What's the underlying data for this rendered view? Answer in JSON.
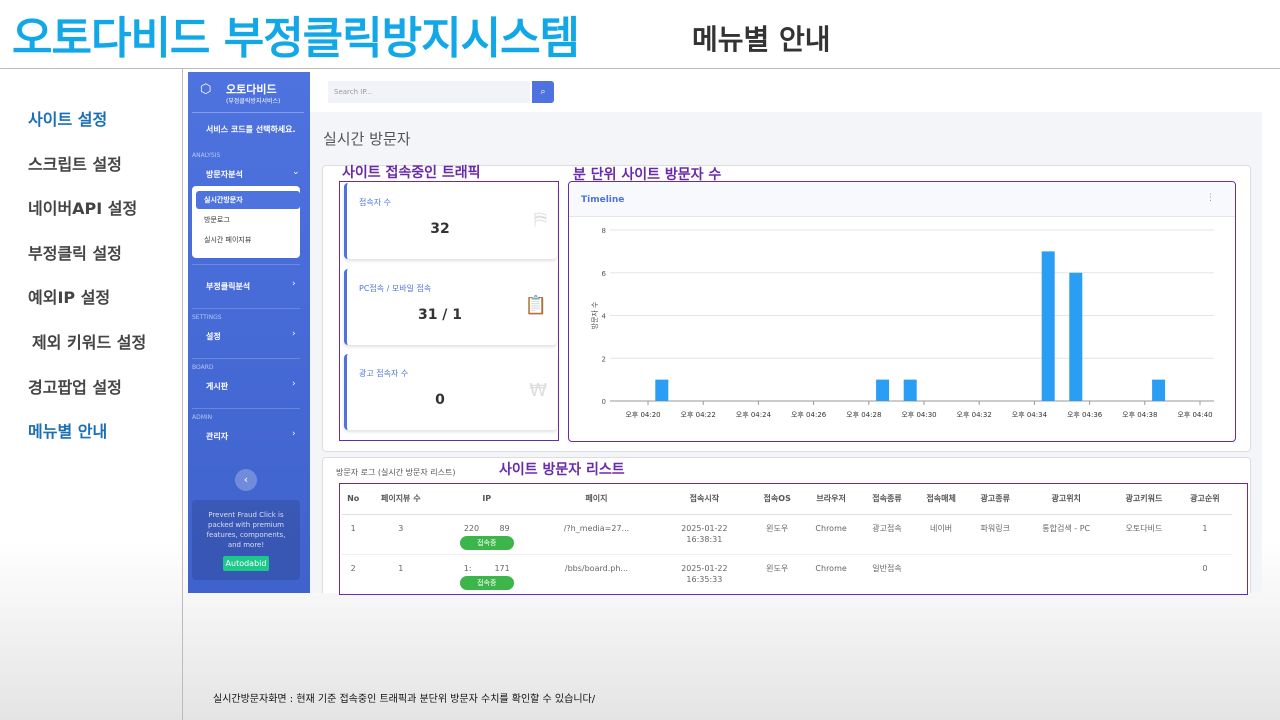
{
  "header": {
    "title": "오토다비드 부정클릭방지시스템",
    "subtitle": "메뉴별 안내"
  },
  "menu": [
    {
      "label": "사이트 설정",
      "active": true
    },
    {
      "label": "스크립트 설정",
      "active": false
    },
    {
      "label": "네이버API 설정",
      "active": false
    },
    {
      "label": "부정클릭 설정",
      "active": false
    },
    {
      "label": "예외IP 설정",
      "active": false
    },
    {
      "label": "제외 키워드 설정",
      "active": false
    },
    {
      "label": "경고팝업 설정",
      "active": false
    },
    {
      "label": "메뉴별 안내",
      "active": true
    }
  ],
  "sidebar": {
    "brand": "오토다비드",
    "brand_sub": "(부정클릭방지서비스)",
    "notice": "서비스 코드를 선택하세요.",
    "sections": [
      {
        "heading": "ANALYSIS",
        "item": "방문자분석",
        "sub": [
          "실시간방문자",
          "방문로그",
          "실시간 페이지뷰"
        ]
      },
      {
        "heading": null,
        "item": "부정클릭분석",
        "sub": null
      },
      {
        "heading": "SETTINGS",
        "item": "설정",
        "sub": null
      },
      {
        "heading": "BOARD",
        "item": "게시판",
        "sub": null
      },
      {
        "heading": "ADMIN",
        "item": "관리자",
        "sub": null
      }
    ],
    "promo": "Prevent Fraud Click is packed with premium features, components, and more!",
    "promo_button": "Autodabid"
  },
  "topbar": {
    "search_placeholder": "Search IP..."
  },
  "page_title": "실시간 방문자",
  "annotations": [
    "사이트 접속중인 트래픽",
    "분 단위 사이트 방문자 수",
    "사이트 방문자 리스트"
  ],
  "stats": [
    {
      "label": "접속자 수",
      "value": 32
    },
    {
      "label": "PC접속 / 모바일 접속",
      "value": "31 / 1"
    },
    {
      "label": "광고 접속자 수",
      "value": 0
    }
  ],
  "chart_data": {
    "type": "bar",
    "title": "Timeline",
    "y_label": "방문자 수",
    "color": "#2a9df4",
    "grid": true,
    "categories": [
      "오후 04:20",
      null,
      "오후 04:22",
      null,
      "오후 04:24",
      null,
      "오후 04:26",
      null,
      "오후 04:28",
      null,
      "오후 04:30",
      null,
      "오후 04:32",
      null,
      "오후 04:34",
      null,
      "오후 04:36",
      null,
      "오후 04:38",
      null,
      "오후 04:40"
    ],
    "values": [
      1,
      0,
      0,
      0,
      0,
      0,
      0,
      0,
      1,
      1,
      0,
      0,
      0,
      0,
      7,
      6,
      0,
      0,
      1,
      0,
      0
    ],
    "ylim": [
      0,
      8
    ],
    "yticks": [
      0,
      2,
      4,
      6,
      8
    ]
  },
  "table": {
    "title": "방문자 로그 (실시간 방문자 리스트)",
    "badge": "접속중",
    "headers": [
      "No",
      "페이지뷰 수",
      "IP",
      "페이지",
      "접속시작",
      "접속OS",
      "브라우저",
      "접속종류",
      "접속매체",
      "광고종류",
      "광고위치",
      "광고키워드",
      "광고순위"
    ],
    "rows": [
      [
        "1",
        "3",
        "220        89",
        "/?h_media=27...",
        "2025-01-22 16:38:31",
        "윈도우",
        "Chrome",
        "광고접속",
        "네이버",
        "파워링크",
        "통합검색 - PC",
        "오토다비드",
        "1"
      ],
      [
        "2",
        "1",
        "1:         171",
        "/bbs/board.ph...",
        "2025-01-22 16:35:33",
        "윈도우",
        "Chrome",
        "일반접속",
        null,
        null,
        null,
        null,
        "0"
      ]
    ]
  },
  "caption": "실시간방문자화면 : 현재 기준 접속중인 트래픽과 분단위 방문자 수치를 확인할 수 있습니다/"
}
